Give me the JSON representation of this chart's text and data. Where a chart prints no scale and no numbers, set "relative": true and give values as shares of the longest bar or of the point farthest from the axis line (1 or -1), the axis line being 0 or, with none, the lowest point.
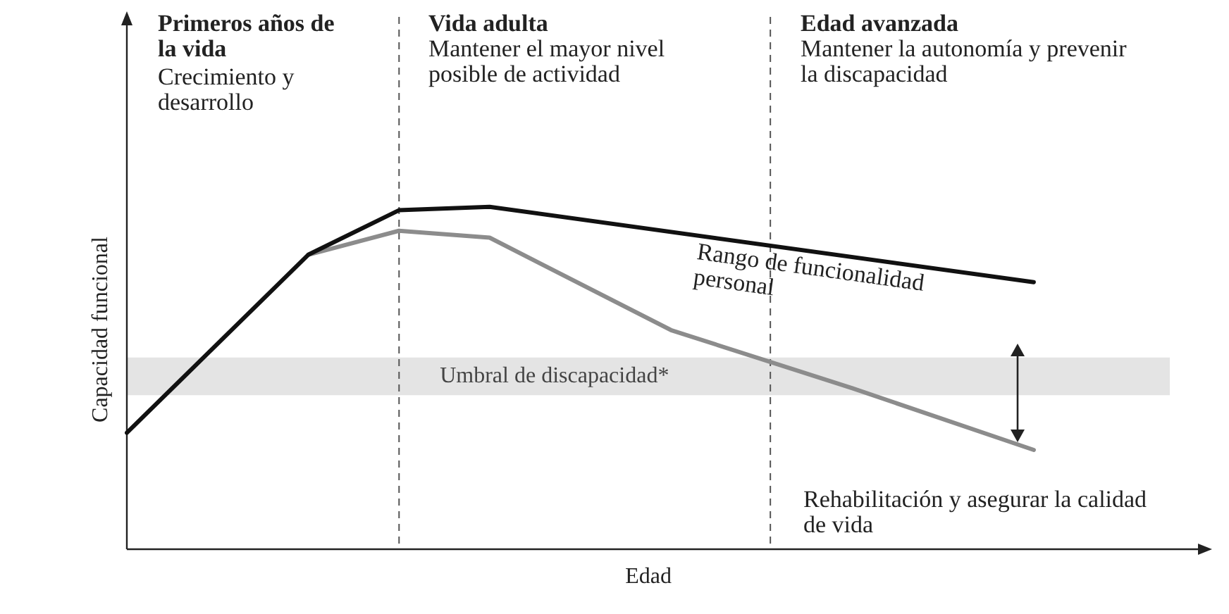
{
  "chart_data": {
    "type": "line",
    "relative": true,
    "xlabel": "Edad",
    "ylabel": "Capacidad funcional",
    "categories": [
      null,
      null,
      null,
      null,
      null,
      null,
      null,
      null,
      null,
      null,
      null,
      null,
      null,
      null,
      null,
      null,
      null,
      null,
      null,
      null,
      null,
      null,
      null,
      null
    ],
    "tick_labels": false,
    "legend": false,
    "marker": "none",
    "line_style": "solid",
    "series": [
      {
        "color": "#111111",
        "values": [
          0.34,
          null,
          null,
          null,
          0.86,
          null,
          0.99,
          null,
          1,
          null,
          null,
          null,
          null,
          null,
          null,
          null,
          null,
          null,
          null,
          null,
          0.78,
          null,
          null,
          null
        ]
      },
      {
        "color": "#8c8c8c",
        "values": [
          null,
          null,
          null,
          null,
          0.86,
          null,
          0.93,
          null,
          0.91,
          null,
          null,
          null,
          0.64,
          null,
          null,
          null,
          0.47,
          null,
          null,
          null,
          0.29,
          null,
          null,
          null
        ]
      }
    ],
    "bands": [
      {
        "axis": "y",
        "from": 0.45,
        "to": 0.56,
        "label": "Umbral de discapacidad*",
        "color": "#e4e4e4"
      }
    ],
    "annotations": [
      "Primeros años de la vida",
      "Crecimiento y desarrollo",
      "Vida adulta",
      "Mantener el mayor nivel posible de actividad",
      "Edad avanzada",
      "Mantener la autonomía y prevenir la discapacidad",
      "Rango de funcionalidad personal",
      "Rehabilitación y asegurar la calidad de vida"
    ]
  }
}
